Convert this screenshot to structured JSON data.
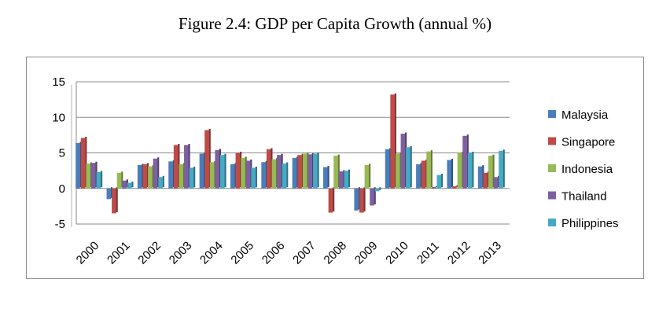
{
  "figure": {
    "title": "Figure 2.4: GDP per Capita Growth (annual %)"
  },
  "chart_data": {
    "type": "bar",
    "title": "Figure 2.4: GDP per Capita Growth (annual %)",
    "xlabel": "",
    "ylabel": "",
    "ylim": [
      -5,
      15
    ],
    "yticks": [
      -5,
      0,
      5,
      10,
      15
    ],
    "grid": true,
    "legend_position": "right",
    "categories": [
      "2000",
      "2001",
      "2002",
      "2003",
      "2004",
      "2005",
      "2006",
      "2007",
      "2008",
      "2009",
      "2010",
      "2011",
      "2012",
      "2013"
    ],
    "series": [
      {
        "name": "Malaysia",
        "color": "#4a7ebb",
        "values": [
          6.4,
          -1.5,
          3.3,
          3.8,
          4.9,
          3.4,
          3.7,
          4.3,
          3.0,
          -3.1,
          5.5,
          3.4,
          4.0,
          3.1
        ]
      },
      {
        "name": "Singapore",
        "color": "#be4b48",
        "values": [
          7.1,
          -3.5,
          3.4,
          6.1,
          8.2,
          5.0,
          5.5,
          4.7,
          -3.4,
          -3.4,
          13.2,
          3.9,
          0.3,
          2.2
        ]
      },
      {
        "name": "Indonesia",
        "color": "#98b954",
        "values": [
          3.5,
          2.2,
          3.1,
          3.4,
          3.7,
          4.3,
          4.1,
          4.9,
          4.6,
          3.3,
          4.9,
          5.2,
          5.0,
          4.6
        ]
      },
      {
        "name": "Thailand",
        "color": "#7d60a0",
        "values": [
          3.6,
          1.1,
          4.2,
          6.1,
          5.4,
          3.9,
          4.7,
          4.8,
          2.4,
          -2.4,
          7.7,
          0.2,
          7.4,
          1.6
        ]
      },
      {
        "name": "Philippines",
        "color": "#46aac5",
        "values": [
          2.3,
          0.8,
          1.6,
          2.9,
          4.7,
          2.9,
          3.5,
          4.9,
          2.5,
          -0.4,
          5.8,
          1.9,
          5.0,
          5.3
        ]
      }
    ]
  }
}
